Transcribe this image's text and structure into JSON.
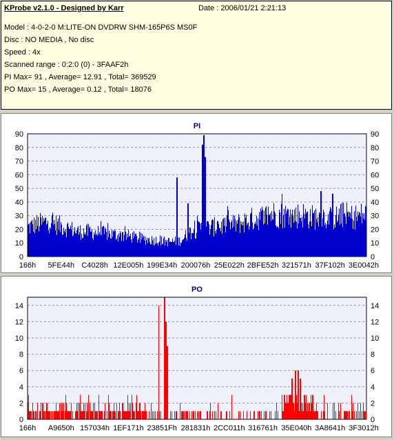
{
  "info": {
    "title": "KProbe v2.1.0 - Designed by Karr",
    "date": "Date : 2006/01/21 2:21:13",
    "lines": [
      "Model : 4-0-2-0 M:LITE-ON DVDRW SHM-165P6S MS0F",
      "Disc : NO MEDIA , No disc",
      "Speed : 4x",
      "Scanned range : 0:2:0 (0) - 3FAAF2h",
      "PI Max= 91 , Average= 12.91 , Total= 369529",
      "PO Max= 15 , Average= 0.12 , Total= 18076"
    ]
  },
  "chart_data": [
    {
      "type": "bar",
      "title": "PI",
      "color": "#0000cc",
      "ylim": [
        0,
        90
      ],
      "yticks": [
        0,
        10,
        20,
        30,
        40,
        50,
        60,
        70,
        80,
        90
      ],
      "xticklabels": [
        "166h",
        "5FE44h",
        "C4028h",
        "12E005h",
        "199E34h",
        "200076h",
        "25E022h",
        "2BFE52h",
        "321571h",
        "37F102h",
        "3E0042h"
      ],
      "grid": true,
      "profile": [
        [
          0,
          26
        ],
        [
          3,
          29
        ],
        [
          6,
          31
        ],
        [
          9,
          28
        ],
        [
          12,
          25
        ],
        [
          15,
          22
        ],
        [
          18,
          22
        ],
        [
          21,
          21
        ],
        [
          24,
          20
        ],
        [
          27,
          19
        ],
        [
          30,
          18
        ],
        [
          33,
          16
        ],
        [
          36,
          15
        ],
        [
          39,
          14
        ],
        [
          42,
          13
        ],
        [
          45,
          14
        ],
        [
          48,
          22
        ],
        [
          51,
          25
        ],
        [
          54,
          26
        ],
        [
          57,
          27
        ],
        [
          60,
          28
        ],
        [
          63,
          30
        ],
        [
          66,
          33
        ],
        [
          69,
          35
        ],
        [
          72,
          38
        ],
        [
          75,
          37
        ],
        [
          78,
          36
        ],
        [
          81,
          37
        ],
        [
          84,
          35
        ],
        [
          87,
          36
        ],
        [
          90,
          33
        ],
        [
          93,
          37
        ],
        [
          96,
          35
        ],
        [
          99,
          37
        ]
      ],
      "spikes": [
        [
          28,
          18
        ],
        [
          44,
          58
        ],
        [
          47.2,
          39
        ],
        [
          50,
          30
        ],
        [
          51.5,
          82
        ],
        [
          52,
          89
        ],
        [
          52.4,
          73
        ],
        [
          56,
          26
        ],
        [
          59,
          34
        ],
        [
          75,
          46
        ],
        [
          86.5,
          48
        ],
        [
          90,
          46
        ]
      ],
      "max": 91
    },
    {
      "type": "bar",
      "title": "PO",
      "color": "#ff0000",
      "ylim": [
        0,
        15
      ],
      "yticks": [
        0,
        2,
        4,
        6,
        8,
        10,
        12,
        14
      ],
      "xticklabels": [
        "166h",
        "A9650h",
        "157034h",
        "1EF171h",
        "23851Fh",
        "281831h",
        "2CC011h",
        "316761h",
        "35E040h",
        "3A8641h",
        "3F3012h"
      ],
      "grid": true,
      "spikes": [
        [
          38.6,
          14
        ],
        [
          40.3,
          15
        ],
        [
          40.8,
          12
        ],
        [
          41.2,
          9
        ],
        [
          78,
          5
        ],
        [
          79,
          6
        ],
        [
          79.7,
          6
        ],
        [
          80.4,
          5
        ]
      ],
      "max": 15
    }
  ]
}
